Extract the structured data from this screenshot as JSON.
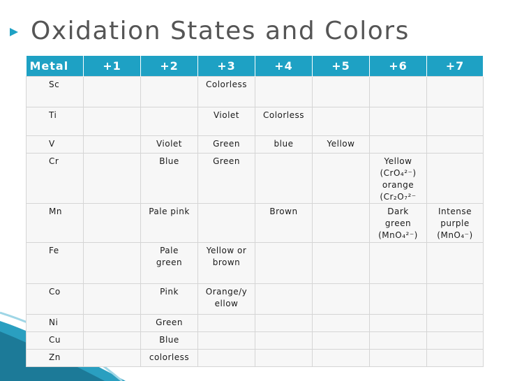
{
  "title": "Oxidation States and Colors",
  "colors": {
    "header_bg": "#1ea1c4",
    "bullet": "#1ea1c4",
    "title": "#555555"
  },
  "table": {
    "headers": [
      "Metal",
      "+1",
      "+2",
      "+3",
      "+4",
      "+5",
      "+6",
      "+7"
    ],
    "rows": [
      {
        "metal": "Sc",
        "cells": [
          "",
          "",
          "Colorless",
          "",
          "",
          "",
          ""
        ]
      },
      {
        "metal": "Ti",
        "cells": [
          "",
          "",
          "Violet",
          "Colorless",
          "",
          "",
          ""
        ]
      },
      {
        "metal": "V",
        "cells": [
          "",
          "Violet",
          "Green",
          "blue",
          "Yellow",
          "",
          ""
        ]
      },
      {
        "metal": "Cr",
        "cells": [
          "",
          "Blue",
          "Green",
          "",
          "",
          "Yellow\n(CrO₄²⁻)\norange\n(Cr₂O₇²⁻",
          ""
        ]
      },
      {
        "metal": "Mn",
        "cells": [
          "",
          "Pale pink",
          "",
          "Brown",
          "",
          "Dark\ngreen\n(MnO₄²⁻)",
          "Intense\npurple\n(MnO₄⁻)"
        ]
      },
      {
        "metal": "Fe",
        "cells": [
          "",
          "Pale\ngreen",
          "Yellow or\nbrown",
          "",
          "",
          "",
          ""
        ]
      },
      {
        "metal": "Co",
        "cells": [
          "",
          "Pink",
          "Orange/y\nellow",
          "",
          "",
          "",
          ""
        ]
      },
      {
        "metal": "Ni",
        "cells": [
          "",
          "Green",
          "",
          "",
          "",
          "",
          ""
        ]
      },
      {
        "metal": "Cu",
        "cells": [
          "",
          "Blue",
          "",
          "",
          "",
          "",
          ""
        ]
      },
      {
        "metal": "Zn",
        "cells": [
          "",
          "colorless",
          "",
          "",
          "",
          "",
          ""
        ]
      }
    ]
  }
}
